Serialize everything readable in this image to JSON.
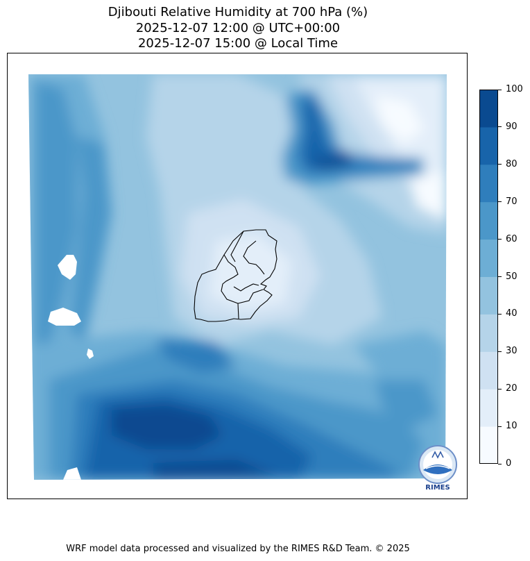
{
  "title": {
    "line1": "Djibouti Relative Humidity at 700 hPa (%)",
    "line2": "2025-12-07 12:00 @ UTC+00:00",
    "line3": "2025-12-07 15:00 @ Local Time"
  },
  "colorbar": {
    "ticks": [
      "0",
      "10",
      "20",
      "30",
      "40",
      "50",
      "60",
      "70",
      "80",
      "90",
      "100"
    ],
    "colors": [
      "#f7fbff",
      "#e3eef9",
      "#cfe1f2",
      "#b5d4e9",
      "#93c3df",
      "#6daed5",
      "#4b97c9",
      "#2f7ebc",
      "#1864aa",
      "#0a4a90"
    ]
  },
  "logo": {
    "text": "RIMES"
  },
  "footer": "WRF model data processed and visualized by the RIMES R&D Team. © 2025"
}
